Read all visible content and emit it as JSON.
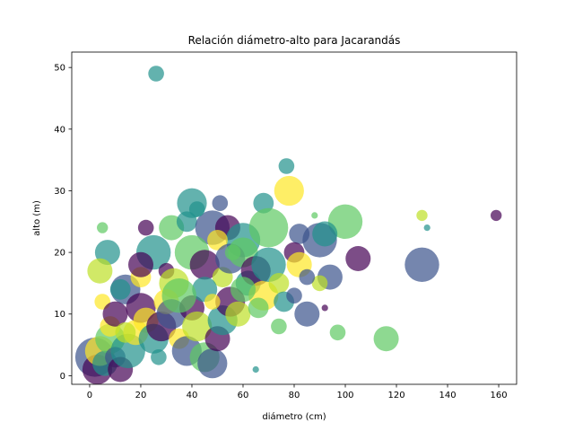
{
  "chart_data": {
    "type": "scatter",
    "title": "Relación diámetro-alto para Jacarandás",
    "xlabel": "diámetro (cm)",
    "ylabel": "alto (m)",
    "xlim": [
      -7,
      167
    ],
    "ylim": [
      -1.4,
      52.5
    ],
    "xticks": [
      0,
      20,
      40,
      60,
      80,
      100,
      120,
      140,
      160
    ],
    "yticks": [
      0,
      10,
      20,
      30,
      40,
      50
    ],
    "grid": false,
    "legend": "none",
    "alpha": 0.7,
    "colormap": [
      "#440154",
      "#3b528b",
      "#21918c",
      "#5ec962",
      "#fde725"
    ],
    "points": [
      {
        "x": 26,
        "y": 49,
        "size": 3,
        "color": "#21918c"
      },
      {
        "x": 77,
        "y": 34,
        "size": 3,
        "color": "#21918c"
      },
      {
        "x": 78,
        "y": 30,
        "size": 6,
        "color": "#fde725"
      },
      {
        "x": 40,
        "y": 28,
        "size": 6,
        "color": "#21918c"
      },
      {
        "x": 51,
        "y": 28,
        "size": 3,
        "color": "#3b528b"
      },
      {
        "x": 68,
        "y": 28,
        "size": 4,
        "color": "#21918c"
      },
      {
        "x": 100,
        "y": 25,
        "size": 7,
        "color": "#5ec962"
      },
      {
        "x": 130,
        "y": 26,
        "size": 2,
        "color": "#bddf26"
      },
      {
        "x": 159,
        "y": 26,
        "size": 2,
        "color": "#440154"
      },
      {
        "x": 132,
        "y": 24,
        "size": 1,
        "color": "#21918c"
      },
      {
        "x": 5,
        "y": 24,
        "size": 2,
        "color": "#5ec962"
      },
      {
        "x": 7,
        "y": 20,
        "size": 5,
        "color": "#21918c"
      },
      {
        "x": 22,
        "y": 24,
        "size": 3,
        "color": "#440154"
      },
      {
        "x": 32,
        "y": 24,
        "size": 5,
        "color": "#5ec962"
      },
      {
        "x": 38,
        "y": 25,
        "size": 4,
        "color": "#21918c"
      },
      {
        "x": 48,
        "y": 24,
        "size": 7,
        "color": "#3b528b"
      },
      {
        "x": 54,
        "y": 24,
        "size": 5,
        "color": "#440154"
      },
      {
        "x": 60,
        "y": 22,
        "size": 7,
        "color": "#21918c"
      },
      {
        "x": 70,
        "y": 24,
        "size": 8,
        "color": "#5ec962"
      },
      {
        "x": 82,
        "y": 23,
        "size": 4,
        "color": "#3b528b"
      },
      {
        "x": 90,
        "y": 22,
        "size": 7,
        "color": "#3b528b"
      },
      {
        "x": 92,
        "y": 23,
        "size": 5,
        "color": "#21918c"
      },
      {
        "x": 105,
        "y": 19,
        "size": 5,
        "color": "#440154"
      },
      {
        "x": 94,
        "y": 16,
        "size": 5,
        "color": "#3b528b"
      },
      {
        "x": 130,
        "y": 18,
        "size": 7,
        "color": "#3b528b"
      },
      {
        "x": 116,
        "y": 6,
        "size": 5,
        "color": "#5ec962"
      },
      {
        "x": 97,
        "y": 7,
        "size": 3,
        "color": "#5ec962"
      },
      {
        "x": 85,
        "y": 10,
        "size": 5,
        "color": "#3b528b"
      },
      {
        "x": 92,
        "y": 11,
        "size": 1,
        "color": "#440154"
      },
      {
        "x": 90,
        "y": 15,
        "size": 3,
        "color": "#bddf26"
      },
      {
        "x": 4,
        "y": 17,
        "size": 5,
        "color": "#bddf26"
      },
      {
        "x": 5,
        "y": 12,
        "size": 3,
        "color": "#fde725"
      },
      {
        "x": 14,
        "y": 14,
        "size": 6,
        "color": "#3b528b"
      },
      {
        "x": 20,
        "y": 16,
        "size": 4,
        "color": "#fde725"
      },
      {
        "x": 25,
        "y": 20,
        "size": 7,
        "color": "#21918c"
      },
      {
        "x": 30,
        "y": 17,
        "size": 3,
        "color": "#440154"
      },
      {
        "x": 33,
        "y": 15,
        "size": 6,
        "color": "#bddf26"
      },
      {
        "x": 40,
        "y": 20,
        "size": 7,
        "color": "#5ec962"
      },
      {
        "x": 45,
        "y": 18,
        "size": 6,
        "color": "#440154"
      },
      {
        "x": 50,
        "y": 22,
        "size": 4,
        "color": "#fde725"
      },
      {
        "x": 52,
        "y": 16,
        "size": 4,
        "color": "#bddf26"
      },
      {
        "x": 55,
        "y": 19,
        "size": 6,
        "color": "#3b528b"
      },
      {
        "x": 60,
        "y": 20,
        "size": 6,
        "color": "#5ec962"
      },
      {
        "x": 62,
        "y": 15,
        "size": 5,
        "color": "#21918c"
      },
      {
        "x": 65,
        "y": 17,
        "size": 6,
        "color": "#440154"
      },
      {
        "x": 68,
        "y": 13,
        "size": 6,
        "color": "#fde725"
      },
      {
        "x": 70,
        "y": 18,
        "size": 7,
        "color": "#21918c"
      },
      {
        "x": 74,
        "y": 15,
        "size": 4,
        "color": "#bddf26"
      },
      {
        "x": 76,
        "y": 12,
        "size": 4,
        "color": "#21918c"
      },
      {
        "x": 80,
        "y": 20,
        "size": 4,
        "color": "#440154"
      },
      {
        "x": 82,
        "y": 18,
        "size": 5,
        "color": "#fde725"
      },
      {
        "x": 85,
        "y": 16,
        "size": 3,
        "color": "#3b528b"
      },
      {
        "x": 74,
        "y": 8,
        "size": 3,
        "color": "#5ec962"
      },
      {
        "x": 65,
        "y": 1,
        "size": 1,
        "color": "#21918c"
      },
      {
        "x": 2,
        "y": 3,
        "size": 8,
        "color": "#3b528b"
      },
      {
        "x": 3,
        "y": 1,
        "size": 6,
        "color": "#440154"
      },
      {
        "x": 4,
        "y": 4,
        "size": 6,
        "color": "#fde725"
      },
      {
        "x": 6,
        "y": 2,
        "size": 5,
        "color": "#21918c"
      },
      {
        "x": 8,
        "y": 6,
        "size": 6,
        "color": "#5ec962"
      },
      {
        "x": 10,
        "y": 3,
        "size": 4,
        "color": "#3b528b"
      },
      {
        "x": 12,
        "y": 1,
        "size": 5,
        "color": "#440154"
      },
      {
        "x": 15,
        "y": 4,
        "size": 7,
        "color": "#21918c"
      },
      {
        "x": 18,
        "y": 7,
        "size": 5,
        "color": "#fde725"
      },
      {
        "x": 8,
        "y": 8,
        "size": 4,
        "color": "#fde725"
      },
      {
        "x": 10,
        "y": 10,
        "size": 5,
        "color": "#440154"
      },
      {
        "x": 14,
        "y": 7,
        "size": 4,
        "color": "#bddf26"
      },
      {
        "x": 20,
        "y": 11,
        "size": 6,
        "color": "#440154"
      },
      {
        "x": 22,
        "y": 9,
        "size": 5,
        "color": "#fde725"
      },
      {
        "x": 25,
        "y": 6,
        "size": 6,
        "color": "#21918c"
      },
      {
        "x": 28,
        "y": 8,
        "size": 6,
        "color": "#440154"
      },
      {
        "x": 30,
        "y": 12,
        "size": 5,
        "color": "#fde725"
      },
      {
        "x": 32,
        "y": 10,
        "size": 6,
        "color": "#3b528b"
      },
      {
        "x": 35,
        "y": 6,
        "size": 4,
        "color": "#fde725"
      },
      {
        "x": 38,
        "y": 4,
        "size": 6,
        "color": "#3b528b"
      },
      {
        "x": 40,
        "y": 11,
        "size": 5,
        "color": "#440154"
      },
      {
        "x": 42,
        "y": 8,
        "size": 6,
        "color": "#bddf26"
      },
      {
        "x": 45,
        "y": 3,
        "size": 6,
        "color": "#5ec962"
      },
      {
        "x": 48,
        "y": 2,
        "size": 6,
        "color": "#3b528b"
      },
      {
        "x": 50,
        "y": 6,
        "size": 5,
        "color": "#440154"
      },
      {
        "x": 52,
        "y": 9,
        "size": 6,
        "color": "#21918c"
      },
      {
        "x": 55,
        "y": 12,
        "size": 6,
        "color": "#440154"
      },
      {
        "x": 58,
        "y": 10,
        "size": 5,
        "color": "#bddf26"
      },
      {
        "x": 60,
        "y": 14,
        "size": 5,
        "color": "#5ec962"
      },
      {
        "x": 45,
        "y": 14,
        "size": 5,
        "color": "#21918c"
      },
      {
        "x": 35,
        "y": 13,
        "size": 7,
        "color": "#5ec962"
      },
      {
        "x": 20,
        "y": 18,
        "size": 5,
        "color": "#440154"
      },
      {
        "x": 48,
        "y": 12,
        "size": 3,
        "color": "#fde725"
      },
      {
        "x": 12,
        "y": 14,
        "size": 4,
        "color": "#21918c"
      },
      {
        "x": 27,
        "y": 3,
        "size": 3,
        "color": "#21918c"
      },
      {
        "x": 42,
        "y": 27,
        "size": 3,
        "color": "#21918c"
      },
      {
        "x": 56,
        "y": 20,
        "size": 3,
        "color": "#5ec962"
      },
      {
        "x": 66,
        "y": 11,
        "size": 4,
        "color": "#5ec962"
      },
      {
        "x": 80,
        "y": 13,
        "size": 3,
        "color": "#3b528b"
      },
      {
        "x": 88,
        "y": 26,
        "size": 1,
        "color": "#5ec962"
      }
    ]
  }
}
